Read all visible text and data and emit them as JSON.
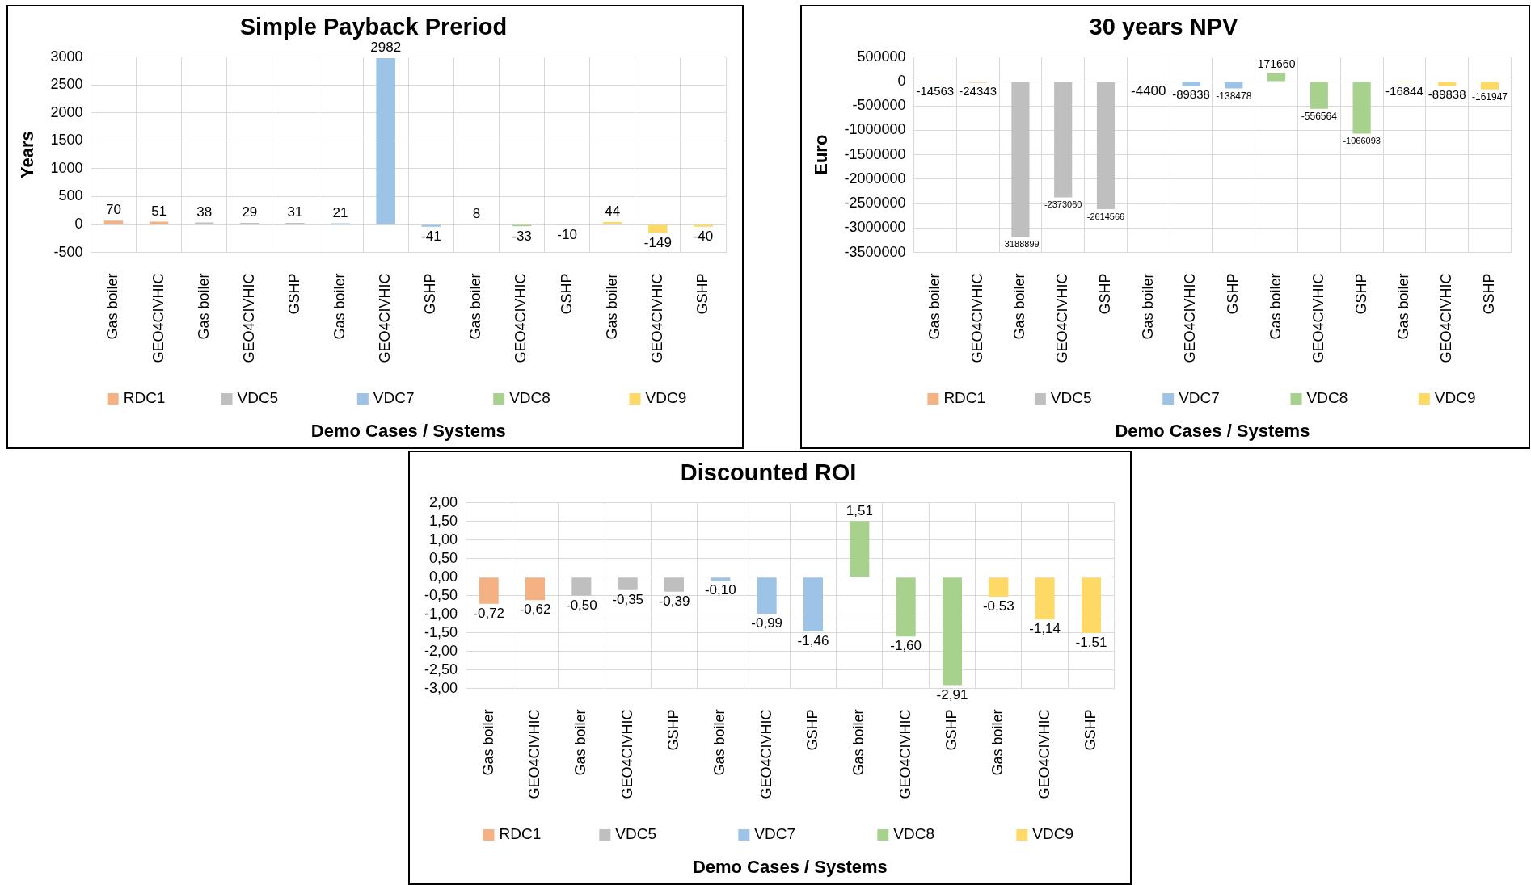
{
  "chart_data": [
    {
      "type": "bar",
      "title": "Simple Payback Preriod",
      "xlabel": "Demo Cases / Systems",
      "ylabel": "Years",
      "categories": [
        "Gas boiler",
        "GEO4CIVHIC",
        "Gas boiler",
        "GEO4CIVHIC",
        "GSHP",
        "Gas boiler",
        "GEO4CIVHIC",
        "GSHP",
        "Gas boiler",
        "GEO4CIVHIC",
        "GSHP",
        "Gas boiler",
        "GEO4CIVHIC",
        "GSHP"
      ],
      "series": [
        {
          "name": "RDC1",
          "color": "#f4b183",
          "values": [
            70,
            51,
            null,
            null,
            null,
            null,
            null,
            null,
            null,
            null,
            null,
            null,
            null,
            null
          ]
        },
        {
          "name": "VDC5",
          "color": "#bfbfbf",
          "values": [
            null,
            null,
            38,
            29,
            31,
            null,
            null,
            null,
            null,
            null,
            null,
            null,
            null,
            null
          ]
        },
        {
          "name": "VDC7",
          "color": "#9dc3e6",
          "values": [
            null,
            null,
            null,
            null,
            null,
            21,
            2982,
            -41,
            null,
            null,
            null,
            null,
            null,
            null
          ]
        },
        {
          "name": "VDC8",
          "color": "#a9d18e",
          "values": [
            null,
            null,
            null,
            null,
            null,
            null,
            null,
            null,
            8,
            -33,
            -10,
            null,
            null,
            null
          ]
        },
        {
          "name": "VDC9",
          "color": "#ffd966",
          "values": [
            null,
            null,
            null,
            null,
            null,
            null,
            null,
            null,
            null,
            null,
            null,
            44,
            -149,
            -40
          ]
        }
      ],
      "ylim": [
        -500,
        3000
      ],
      "yticks": [
        -500,
        0,
        500,
        1000,
        1500,
        2000,
        2500,
        3000
      ],
      "grid": true,
      "legend": "bottom",
      "data_labels": true
    },
    {
      "type": "bar",
      "title": "30 years NPV",
      "xlabel": "Demo Cases / Systems",
      "ylabel": "Euro",
      "categories": [
        "Gas boiler",
        "GEO4CIVHIC",
        "Gas boiler",
        "GEO4CIVHIC",
        "GSHP",
        "Gas boiler",
        "GEO4CIVHIC",
        "GSHP",
        "Gas boiler",
        "GEO4CIVHIC",
        "GSHP",
        "Gas boiler",
        "GEO4CIVHIC",
        "GSHP"
      ],
      "series": [
        {
          "name": "RDC1",
          "color": "#f4b183",
          "values": [
            -14563,
            -24343,
            null,
            null,
            null,
            null,
            null,
            null,
            null,
            null,
            null,
            null,
            null,
            null
          ]
        },
        {
          "name": "VDC5",
          "color": "#bfbfbf",
          "values": [
            null,
            null,
            -3188899,
            -2373060,
            -2614566,
            null,
            null,
            null,
            null,
            null,
            null,
            null,
            null,
            null
          ]
        },
        {
          "name": "VDC7",
          "color": "#9dc3e6",
          "values": [
            null,
            null,
            null,
            null,
            null,
            -4400,
            -89838,
            -138478,
            null,
            null,
            null,
            null,
            null,
            null
          ]
        },
        {
          "name": "VDC8",
          "color": "#a9d18e",
          "values": [
            null,
            null,
            null,
            null,
            null,
            null,
            null,
            null,
            171660,
            -556564,
            -1066093,
            null,
            null,
            null
          ]
        },
        {
          "name": "VDC9",
          "color": "#ffd966",
          "values": [
            null,
            null,
            null,
            null,
            null,
            null,
            null,
            null,
            null,
            null,
            null,
            -16844,
            -89838,
            -161947
          ]
        }
      ],
      "ylim": [
        -3500000,
        500000
      ],
      "yticks": [
        -3500000,
        -3000000,
        -2500000,
        -2000000,
        -1500000,
        -1000000,
        -500000,
        0,
        500000
      ],
      "grid": true,
      "legend": "bottom",
      "data_labels": true
    },
    {
      "type": "bar",
      "title": "Discounted ROI",
      "xlabel": "Demo Cases / Systems",
      "categories": [
        "Gas boiler",
        "GEO4CIVHIC",
        "Gas boiler",
        "GEO4CIVHIC",
        "GSHP",
        "Gas boiler",
        "GEO4CIVHIC",
        "GSHP",
        "Gas boiler",
        "GEO4CIVHIC",
        "GSHP",
        "Gas boiler",
        "GEO4CIVHIC",
        "GSHP"
      ],
      "series": [
        {
          "name": "RDC1",
          "color": "#f4b183",
          "values": [
            -0.72,
            -0.62,
            null,
            null,
            null,
            null,
            null,
            null,
            null,
            null,
            null,
            null,
            null,
            null
          ],
          "value_labels": [
            "-0,72",
            "-0,62",
            null,
            null,
            null,
            null,
            null,
            null,
            null,
            null,
            null,
            null,
            null,
            null
          ]
        },
        {
          "name": "VDC5",
          "color": "#bfbfbf",
          "values": [
            null,
            null,
            -0.5,
            -0.35,
            -0.39,
            null,
            null,
            null,
            null,
            null,
            null,
            null,
            null,
            null
          ],
          "value_labels": [
            null,
            null,
            "-0,50",
            "-0,35",
            "-0,39",
            null,
            null,
            null,
            null,
            null,
            null,
            null,
            null,
            null
          ]
        },
        {
          "name": "VDC7",
          "color": "#9dc3e6",
          "values": [
            null,
            null,
            null,
            null,
            null,
            -0.1,
            -0.99,
            -1.46,
            null,
            null,
            null,
            null,
            null,
            null
          ],
          "value_labels": [
            null,
            null,
            null,
            null,
            null,
            "-0,10",
            "-0,99",
            "-1,46",
            null,
            null,
            null,
            null,
            null,
            null
          ]
        },
        {
          "name": "VDC8",
          "color": "#a9d18e",
          "values": [
            null,
            null,
            null,
            null,
            null,
            null,
            null,
            null,
            1.51,
            -1.6,
            -2.91,
            null,
            null,
            null
          ],
          "value_labels": [
            null,
            null,
            null,
            null,
            null,
            null,
            null,
            null,
            "1,51",
            "-1,60",
            "-2,91",
            null,
            null,
            null
          ]
        },
        {
          "name": "VDC9",
          "color": "#ffd966",
          "values": [
            null,
            null,
            null,
            null,
            null,
            null,
            null,
            null,
            null,
            null,
            null,
            -0.53,
            -1.14,
            -1.51
          ],
          "value_labels": [
            null,
            null,
            null,
            null,
            null,
            null,
            null,
            null,
            null,
            null,
            null,
            "-0,53",
            "-1,14",
            "-1,51"
          ]
        }
      ],
      "ylim": [
        -3,
        2
      ],
      "yticks": [
        {
          "value": -3,
          "label": "-3,00"
        },
        {
          "value": -2.5,
          "label": "-2,50"
        },
        {
          "value": -2,
          "label": "-2,00"
        },
        {
          "value": -1.5,
          "label": "-1,50"
        },
        {
          "value": -1,
          "label": "-1,00"
        },
        {
          "value": -0.5,
          "label": "-0,50"
        },
        {
          "value": 0,
          "label": "0,00"
        },
        {
          "value": 0.5,
          "label": "0,50"
        },
        {
          "value": 1,
          "label": "1,00"
        },
        {
          "value": 1.5,
          "label": "1,50"
        },
        {
          "value": 2,
          "label": "2,00"
        }
      ],
      "grid": true,
      "legend": "bottom"
    }
  ]
}
